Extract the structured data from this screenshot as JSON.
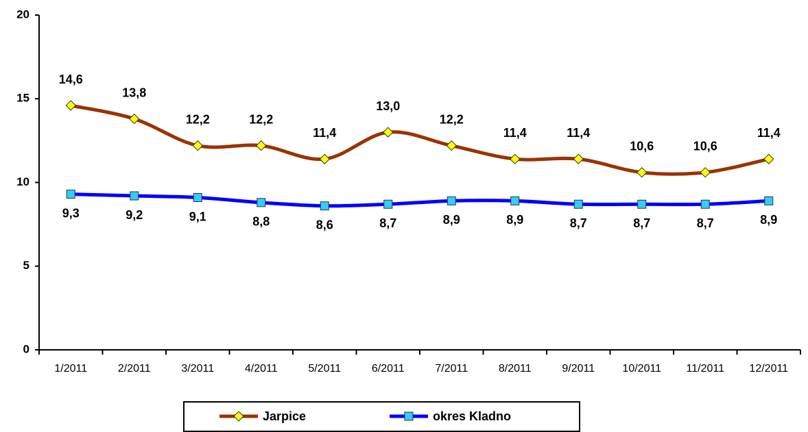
{
  "chart_data": {
    "type": "line",
    "categories": [
      "1/2011",
      "2/2011",
      "3/2011",
      "4/2011",
      "5/2011",
      "6/2011",
      "7/2011",
      "8/2011",
      "9/2011",
      "10/2011",
      "11/2011",
      "12/2011"
    ],
    "series": [
      {
        "name": "Jarpice",
        "color": "#993300",
        "marker_color": "#FFFF00",
        "values": [
          14.6,
          13.8,
          12.2,
          12.2,
          11.4,
          13.0,
          12.2,
          11.4,
          11.4,
          10.6,
          10.6,
          11.4
        ],
        "value_labels": [
          "14,6",
          "13,8",
          "12,2",
          "12,2",
          "11,4",
          "13,0",
          "12,2",
          "11,4",
          "11,4",
          "10,6",
          "10,6",
          "11,4"
        ]
      },
      {
        "name": "okres Kladno",
        "color": "#0000FF",
        "marker_color": "#33CCFF",
        "values": [
          9.3,
          9.2,
          9.1,
          8.8,
          8.6,
          8.7,
          8.9,
          8.9,
          8.7,
          8.7,
          8.7,
          8.9
        ],
        "value_labels": [
          "9,3",
          "9,2",
          "9,1",
          "8,8",
          "8,6",
          "8,7",
          "8,9",
          "8,9",
          "8,7",
          "8,7",
          "8,7",
          "8,9"
        ]
      }
    ],
    "ylim": [
      0,
      20
    ],
    "yticks": [
      0,
      5,
      10,
      15,
      20
    ],
    "smooth": true,
    "legend": "bottom"
  }
}
